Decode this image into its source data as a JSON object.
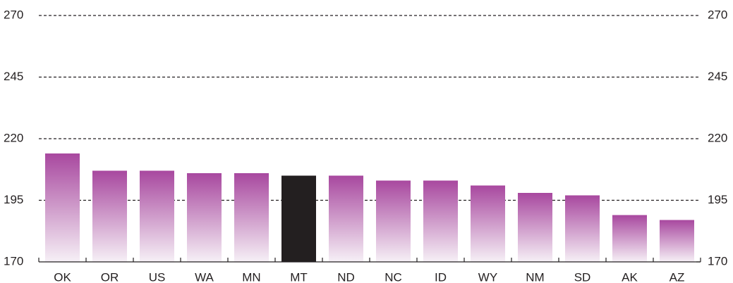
{
  "chart_data": {
    "type": "bar",
    "categories": [
      "OK",
      "OR",
      "US",
      "WA",
      "MN",
      "MT",
      "ND",
      "NC",
      "ID",
      "WY",
      "NM",
      "SD",
      "AK",
      "AZ"
    ],
    "values": [
      214,
      207,
      207,
      206,
      206,
      205,
      205,
      203,
      203,
      201,
      198,
      197,
      189,
      187
    ],
    "colors": [
      "#a8489f",
      "#a8489f",
      "#a8489f",
      "#a8489f",
      "#a8489f",
      "#231f20",
      "#a8489f",
      "#a8489f",
      "#a8489f",
      "#a8489f",
      "#a8489f",
      "#a8489f",
      "#a8489f",
      "#a8489f"
    ],
    "ylim": [
      170,
      270
    ],
    "yticks": [
      170,
      195,
      220,
      245,
      270
    ],
    "y2lim": [
      170,
      270
    ],
    "y2ticks": [
      170,
      195,
      220,
      245,
      270
    ],
    "grid": true
  }
}
